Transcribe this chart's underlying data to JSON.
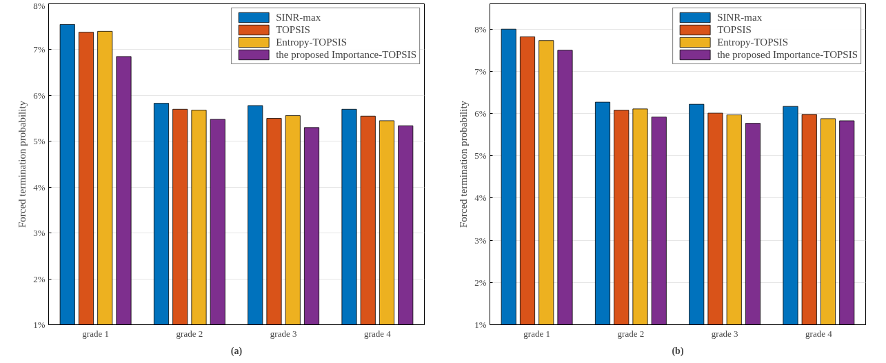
{
  "chart_data": [
    {
      "type": "bar",
      "ylabel": "Forced termination probability",
      "categories": [
        "grade 1",
        "grade 2",
        "grade 3",
        "grade 4"
      ],
      "ylim": [
        1,
        8
      ],
      "yticks": [
        {
          "value": 1,
          "label": "1%"
        },
        {
          "value": 2,
          "label": "2%"
        },
        {
          "value": 3,
          "label": "3%"
        },
        {
          "value": 4,
          "label": "4%"
        },
        {
          "value": 5,
          "label": "5%"
        },
        {
          "value": 6,
          "label": "6%"
        },
        {
          "value": 7,
          "label": "7%"
        },
        {
          "value": 8,
          "label": "8%"
        }
      ],
      "grid": true,
      "legend": "top right",
      "annotations": [
        "(a)"
      ],
      "series": [
        {
          "name": "SINR-max",
          "color": "#0072bd",
          "values": [
            7.55,
            5.83,
            5.78,
            5.7
          ]
        },
        {
          "name": "TOPSIS",
          "color": "#d95319",
          "values": [
            7.38,
            5.7,
            5.5,
            5.55
          ]
        },
        {
          "name": "Entropy-TOPSIS",
          "color": "#edb120",
          "values": [
            7.4,
            5.68,
            5.56,
            5.45
          ]
        },
        {
          "name": "the proposed Importance-TOPSIS",
          "color": "#7e2f8e",
          "values": [
            6.85,
            5.48,
            5.3,
            5.34
          ]
        }
      ]
    },
    {
      "type": "bar",
      "ylabel": "Forced termination probability",
      "categories": [
        "grade 1",
        "grade 2",
        "grade 3",
        "grade 4"
      ],
      "ylim": [
        1,
        8.6
      ],
      "yticks": [
        {
          "value": 1,
          "label": "1%"
        },
        {
          "value": 2,
          "label": "2%"
        },
        {
          "value": 3,
          "label": "3%"
        },
        {
          "value": 4,
          "label": "4%"
        },
        {
          "value": 5,
          "label": "5%"
        },
        {
          "value": 6,
          "label": "6%"
        },
        {
          "value": 7,
          "label": "7%"
        },
        {
          "value": 8,
          "label": "8%"
        }
      ],
      "grid": true,
      "legend": "top right",
      "annotations": [
        "(b)"
      ],
      "series": [
        {
          "name": "SINR-max",
          "color": "#0072bd",
          "values": [
            8.0,
            6.27,
            6.22,
            6.17
          ]
        },
        {
          "name": "TOPSIS",
          "color": "#d95319",
          "values": [
            7.82,
            6.08,
            6.01,
            5.98
          ]
        },
        {
          "name": "Entropy-TOPSIS",
          "color": "#edb120",
          "values": [
            7.73,
            6.11,
            5.97,
            5.88
          ]
        },
        {
          "name": "the proposed Importance-TOPSIS",
          "color": "#7e2f8e",
          "values": [
            7.5,
            5.92,
            5.77,
            5.83
          ]
        }
      ]
    }
  ]
}
